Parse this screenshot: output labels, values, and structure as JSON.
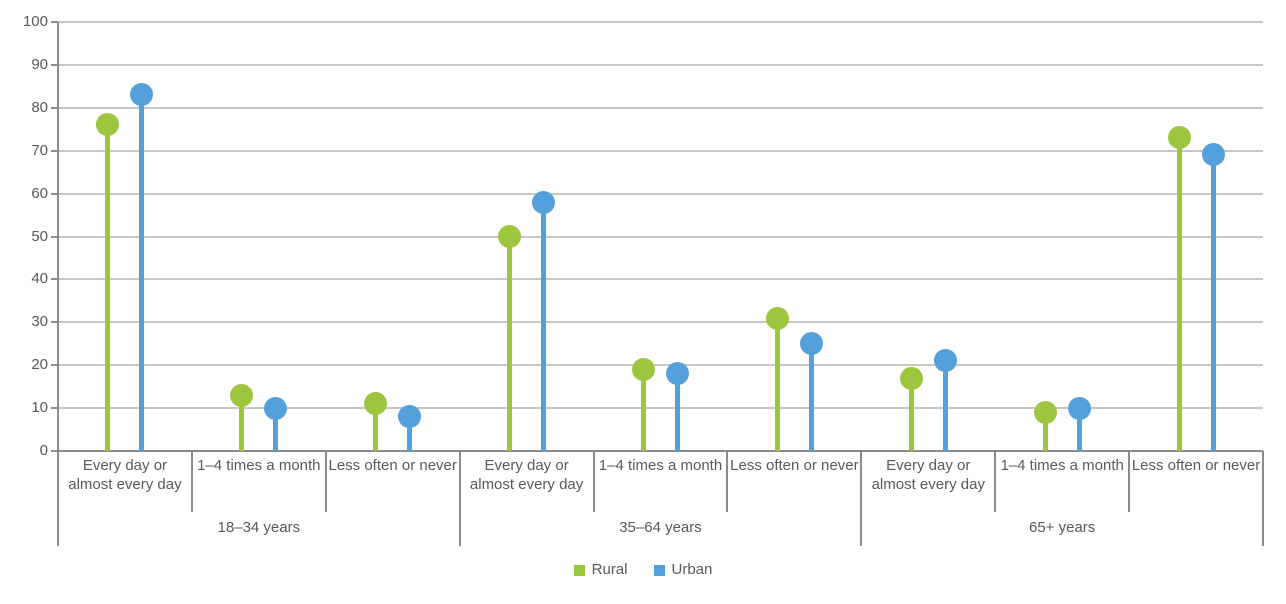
{
  "chart_data": {
    "type": "lollipop",
    "title": "",
    "y_axis": {
      "min": 0,
      "max": 100,
      "step": 10,
      "tick_labels": [
        "0",
        "10",
        "20",
        "30",
        "40",
        "50",
        "60",
        "70",
        "80",
        "90",
        "100"
      ]
    },
    "group_labels": [
      "18–34 years",
      "35–64 years",
      "65+ years"
    ],
    "category_labels": [
      "Every day or almost every day",
      "1–4 times a month",
      "Less often or never"
    ],
    "series": [
      {
        "name": "Rural",
        "color": "#9cc63d",
        "values": [
          [
            76,
            13,
            11
          ],
          [
            50,
            19,
            31
          ],
          [
            17,
            9,
            73
          ]
        ]
      },
      {
        "name": "Urban",
        "color": "#54a0da",
        "values": [
          [
            83,
            10,
            8
          ],
          [
            58,
            18,
            25
          ],
          [
            21,
            10,
            69
          ]
        ]
      }
    ],
    "grid": true,
    "legend_position": "bottom"
  },
  "colors": {
    "axis": "#8c8c8c",
    "gridline": "#c6c6c6",
    "text": "#595959",
    "background": "#ffffff"
  }
}
